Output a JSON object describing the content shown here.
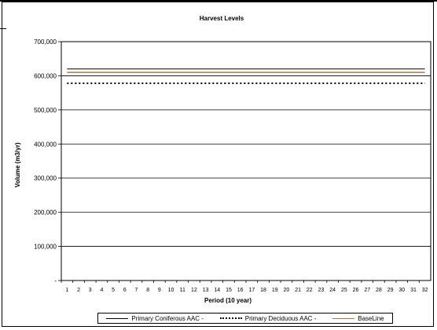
{
  "chart_data": {
    "type": "line",
    "title": "Harvest Levels",
    "xlabel": "Period (10 year)",
    "ylabel": "Volume (m3/yr)",
    "ylim": [
      0,
      700000
    ],
    "yticks": [
      "-",
      "100,000",
      "200,000",
      "300,000",
      "400,000",
      "500,000",
      "600,000",
      "700,000"
    ],
    "grid": true,
    "legend_position": "bottom",
    "categories": [
      "1",
      "2",
      "3",
      "4",
      "5",
      "6",
      "7",
      "8",
      "9",
      "10",
      "11",
      "12",
      "13",
      "14",
      "15",
      "16",
      "17",
      "18",
      "19",
      "20",
      "21",
      "22",
      "23",
      "24",
      "25",
      "26",
      "27",
      "28",
      "29",
      "30",
      "31",
      "32"
    ],
    "series": [
      {
        "name": "Primary Coniferous AAC -",
        "color": "#000000",
        "style": "solid",
        "values": [
          620000,
          620000,
          620000,
          620000,
          620000,
          620000,
          620000,
          620000,
          620000,
          620000,
          620000,
          620000,
          620000,
          620000,
          620000,
          620000,
          620000,
          620000,
          620000,
          620000,
          620000,
          620000,
          620000,
          620000,
          620000,
          620000,
          620000,
          620000,
          620000,
          620000,
          620000,
          620000
        ]
      },
      {
        "name": "Primary Deciduous AAC -",
        "color": "#000000",
        "style": "dotted",
        "values": [
          578000,
          578000,
          578000,
          578000,
          578000,
          578000,
          578000,
          578000,
          578000,
          578000,
          578000,
          578000,
          578000,
          578000,
          578000,
          578000,
          578000,
          578000,
          578000,
          578000,
          578000,
          578000,
          578000,
          578000,
          578000,
          578000,
          578000,
          578000,
          578000,
          578000,
          578000,
          578000
        ]
      },
      {
        "name": "BaseLine",
        "color": "#c0703c",
        "style": "solid",
        "values": [
          610000,
          610000,
          610000,
          610000,
          610000,
          610000,
          610000,
          610000,
          610000,
          610000,
          610000,
          610000,
          610000,
          610000,
          610000,
          610000,
          610000,
          610000,
          610000,
          610000,
          610000,
          610000,
          610000,
          610000,
          610000,
          610000,
          610000,
          610000,
          610000,
          610000,
          610000,
          610000
        ]
      }
    ]
  }
}
